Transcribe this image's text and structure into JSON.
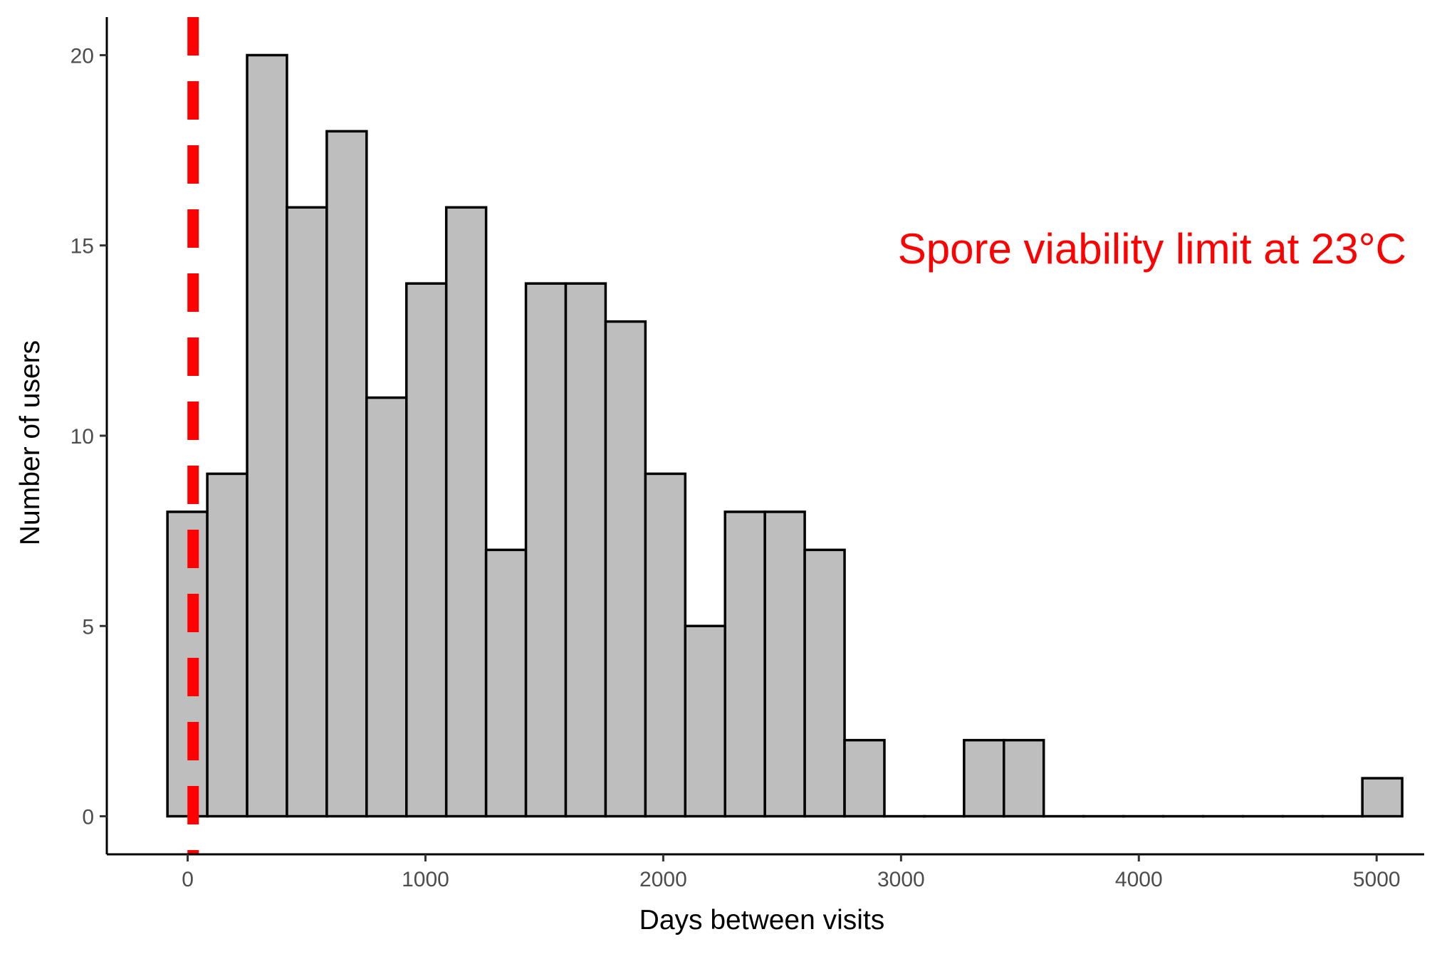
{
  "chart_data": {
    "type": "bar",
    "subtype": "histogram",
    "title": "",
    "xlabel": "Days between visits",
    "ylabel": "Number of users",
    "xlim": [
      -340,
      5200
    ],
    "ylim": [
      -1,
      21
    ],
    "x_ticks": [
      0,
      1000,
      2000,
      3000,
      4000,
      5000
    ],
    "x_tick_labels": [
      "0",
      "1000",
      "2000",
      "3000",
      "4000",
      "5000"
    ],
    "y_ticks": [
      0,
      5,
      10,
      15,
      20
    ],
    "y_tick_labels": [
      "0",
      "5",
      "10",
      "15",
      "20"
    ],
    "grid": false,
    "legend": "none",
    "bin_width": 167.5,
    "bin_start": -85,
    "values": [
      8,
      9,
      20,
      16,
      18,
      11,
      14,
      16,
      7,
      14,
      14,
      13,
      9,
      5,
      8,
      8,
      7,
      2,
      0,
      0,
      2,
      2,
      0,
      0,
      0,
      0,
      0,
      0,
      0,
      0,
      1
    ],
    "bar_fill": "#bebebe",
    "bar_stroke": "#000000",
    "reference_line": {
      "x": 23,
      "style": "dashed",
      "color": "#ff0000"
    },
    "annotation": {
      "text": "Spore viability limit at 23°C",
      "color": "#ff0000"
    }
  }
}
